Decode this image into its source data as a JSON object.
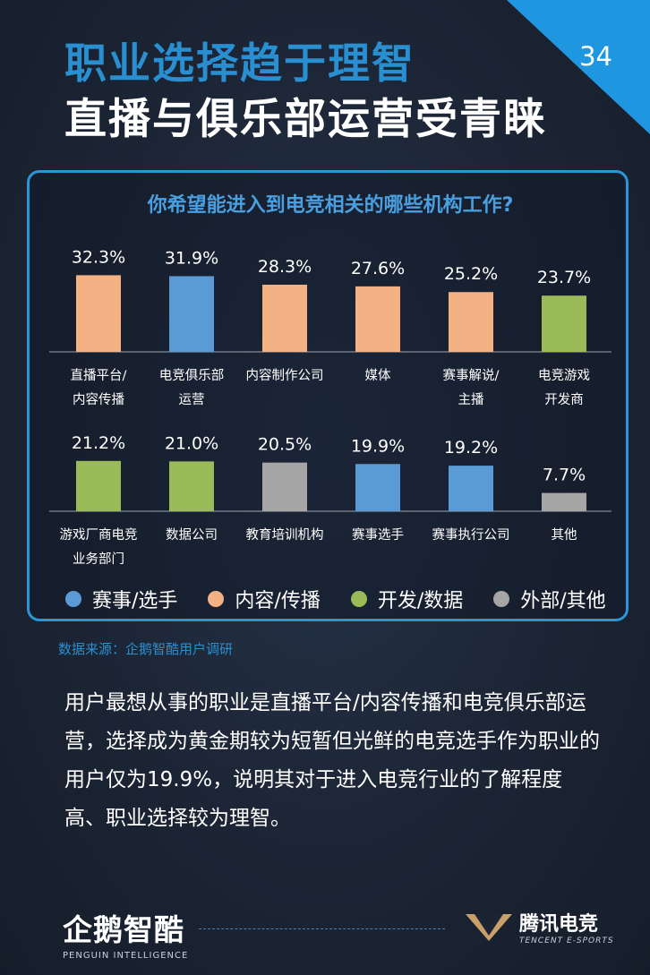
{
  "header": {
    "title_line1": "职业选择趋于理智",
    "title_line2": "直播与俱乐部运营受青睐",
    "page_number": "34"
  },
  "chart_data": {
    "type": "bar",
    "title": "你希望能进入到电竞相关的哪些机构工作?",
    "unit": "%",
    "rows": [
      [
        {
          "label": "直播平台/\n内容传播",
          "value": 32.3,
          "display": "32.3%",
          "group": "content"
        },
        {
          "label": "电竞俱乐部\n运营",
          "value": 31.9,
          "display": "31.9%",
          "group": "players"
        },
        {
          "label": "内容制作公司",
          "value": 28.3,
          "display": "28.3%",
          "group": "content"
        },
        {
          "label": "媒体",
          "value": 27.6,
          "display": "27.6%",
          "group": "content"
        },
        {
          "label": "赛事解说/\n主播",
          "value": 25.2,
          "display": "25.2%",
          "group": "content"
        },
        {
          "label": "电竞游戏\n开发商",
          "value": 23.7,
          "display": "23.7%",
          "group": "dev"
        }
      ],
      [
        {
          "label": "游戏厂商电竞\n业务部门",
          "value": 21.2,
          "display": "21.2%",
          "group": "dev"
        },
        {
          "label": "数据公司",
          "value": 21.0,
          "display": "21.0%",
          "group": "dev"
        },
        {
          "label": "教育培训机构",
          "value": 20.5,
          "display": "20.5%",
          "group": "other"
        },
        {
          "label": "赛事选手",
          "value": 19.9,
          "display": "19.9%",
          "group": "players"
        },
        {
          "label": "赛事执行公司",
          "value": 19.2,
          "display": "19.2%",
          "group": "players"
        },
        {
          "label": "其他",
          "value": 7.7,
          "display": "7.7%",
          "group": "other"
        }
      ]
    ],
    "legend": [
      {
        "key": "players",
        "name": "赛事/选手",
        "color": "#5b9bd5"
      },
      {
        "key": "content",
        "name": "内容/传播",
        "color": "#f4b183"
      },
      {
        "key": "dev",
        "name": "开发/数据",
        "color": "#9bbb59"
      },
      {
        "key": "other",
        "name": "外部/其他",
        "color": "#a6a6a6"
      }
    ],
    "legend_position": "bottom",
    "grid": false
  },
  "source": "数据来源：企鹅智酷用户调研",
  "body_text": "用户最想从事的职业是直播平台/内容传播和电竞俱乐部运营，选择成为黄金期较为短暂但光鲜的电竞选手作为职业的用户仅为19.9%，说明其对于进入电竞行业的了解程度高、职业选择较为理智。",
  "footer": {
    "left_logo_cn": "企鹅智酷",
    "left_logo_en": "PENGUIN INTELLIGENCE",
    "right_logo_cn": "腾讯电竞",
    "right_logo_en": "TENCENT E-SPORTS"
  },
  "colors": {
    "accent": "#2a8fd0",
    "background": "#1c2535"
  }
}
